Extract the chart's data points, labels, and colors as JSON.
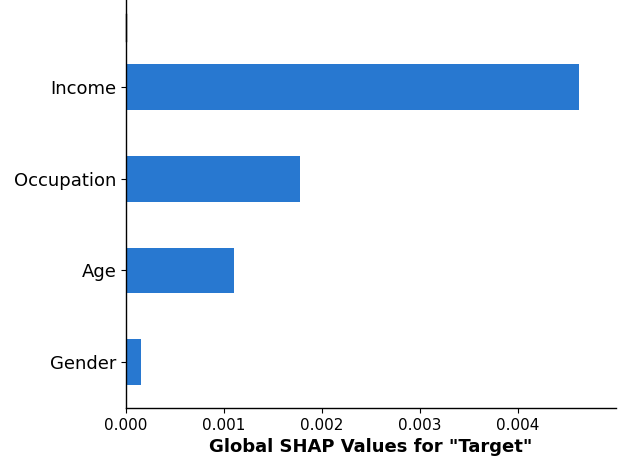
{
  "categories": [
    "Gender",
    "Age",
    "Occupation",
    "Income"
  ],
  "values": [
    0.00015,
    0.0011,
    0.00178,
    0.00462
  ],
  "bar_color": "#2878d0",
  "xlabel": "Global SHAP Values for \"Target\"",
  "xlim": [
    0,
    0.005
  ],
  "xticks": [
    0.0,
    0.001,
    0.002,
    0.003,
    0.004
  ],
  "xlabel_fontsize": 13,
  "ylabel_fontsize": 13,
  "tick_fontsize": 11,
  "bar_height": 0.5,
  "background_color": "#ffffff",
  "figsize": [
    6.3,
    4.7
  ],
  "dpi": 100
}
